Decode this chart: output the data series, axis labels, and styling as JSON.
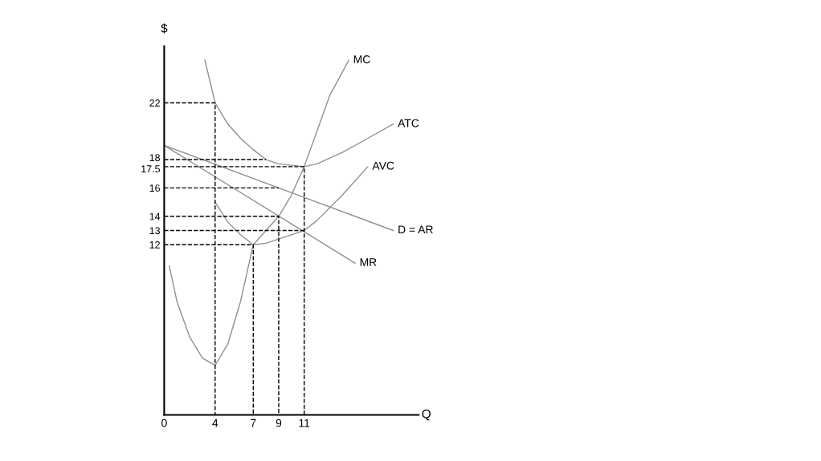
{
  "chart_data": {
    "type": "line",
    "xlabel": "Q",
    "ylabel": "$",
    "xlim": [
      0,
      20
    ],
    "ylim": [
      0,
      26
    ],
    "xticks": [
      0,
      4,
      7,
      9,
      11
    ],
    "yticks": [
      12,
      13,
      14,
      16,
      17.5,
      18,
      22
    ],
    "grid": false,
    "legend": false,
    "marker": "none",
    "series": [
      {
        "name": "MC",
        "color": "#909090",
        "line_style": "solid",
        "x": [
          0.4,
          1,
          2,
          3,
          4,
          5,
          6,
          7,
          8,
          9,
          10,
          11,
          12,
          13,
          14.5
        ],
        "values": [
          10.5,
          8,
          5.5,
          4,
          3.5,
          5,
          8,
          12,
          13,
          14,
          15.5,
          17.5,
          20,
          22.5,
          25
        ]
      },
      {
        "name": "ATC",
        "color": "#909090",
        "line_style": "solid",
        "x": [
          3.2,
          4,
          5,
          6,
          7,
          8,
          9,
          10,
          11,
          12,
          14,
          16,
          18
        ],
        "values": [
          25,
          22,
          20.5,
          19.5,
          18.7,
          18,
          17.7,
          17.6,
          17.5,
          17.7,
          18.5,
          19.5,
          20.5
        ]
      },
      {
        "name": "AVC",
        "color": "#909090",
        "line_style": "solid",
        "x": [
          4,
          5,
          6,
          7,
          8,
          9,
          10,
          11,
          12,
          14,
          16
        ],
        "values": [
          15,
          13.6,
          12.7,
          12,
          12.1,
          12.4,
          12.7,
          13,
          13.7,
          15.5,
          17.5
        ]
      },
      {
        "name": "D = AR",
        "color": "#909090",
        "line_style": "solid",
        "x": [
          0,
          18
        ],
        "values": [
          19,
          13
        ]
      },
      {
        "name": "MR",
        "color": "#909090",
        "line_style": "solid",
        "x": [
          0,
          15
        ],
        "values": [
          19,
          10.7
        ]
      },
      {
        "color": "#000000",
        "line_style": "dashed",
        "x": [
          0,
          4,
          4
        ],
        "values": [
          22,
          22,
          0
        ]
      },
      {
        "color": "#000000",
        "line_style": "dashed",
        "x": [
          0,
          8
        ],
        "values": [
          18,
          18
        ]
      },
      {
        "color": "#000000",
        "line_style": "dashed",
        "x": [
          0,
          11,
          11
        ],
        "values": [
          17.5,
          17.5,
          0
        ]
      },
      {
        "color": "#000000",
        "line_style": "dashed",
        "x": [
          0,
          9
        ],
        "values": [
          16,
          16
        ]
      },
      {
        "color": "#000000",
        "line_style": "dashed",
        "x": [
          0,
          9,
          9
        ],
        "values": [
          14,
          14,
          0
        ]
      },
      {
        "color": "#000000",
        "line_style": "dashed",
        "x": [
          0,
          11
        ],
        "values": [
          13,
          13
        ]
      },
      {
        "color": "#000000",
        "line_style": "dashed",
        "x": [
          0,
          7,
          7
        ],
        "values": [
          12,
          12,
          0
        ]
      }
    ]
  }
}
